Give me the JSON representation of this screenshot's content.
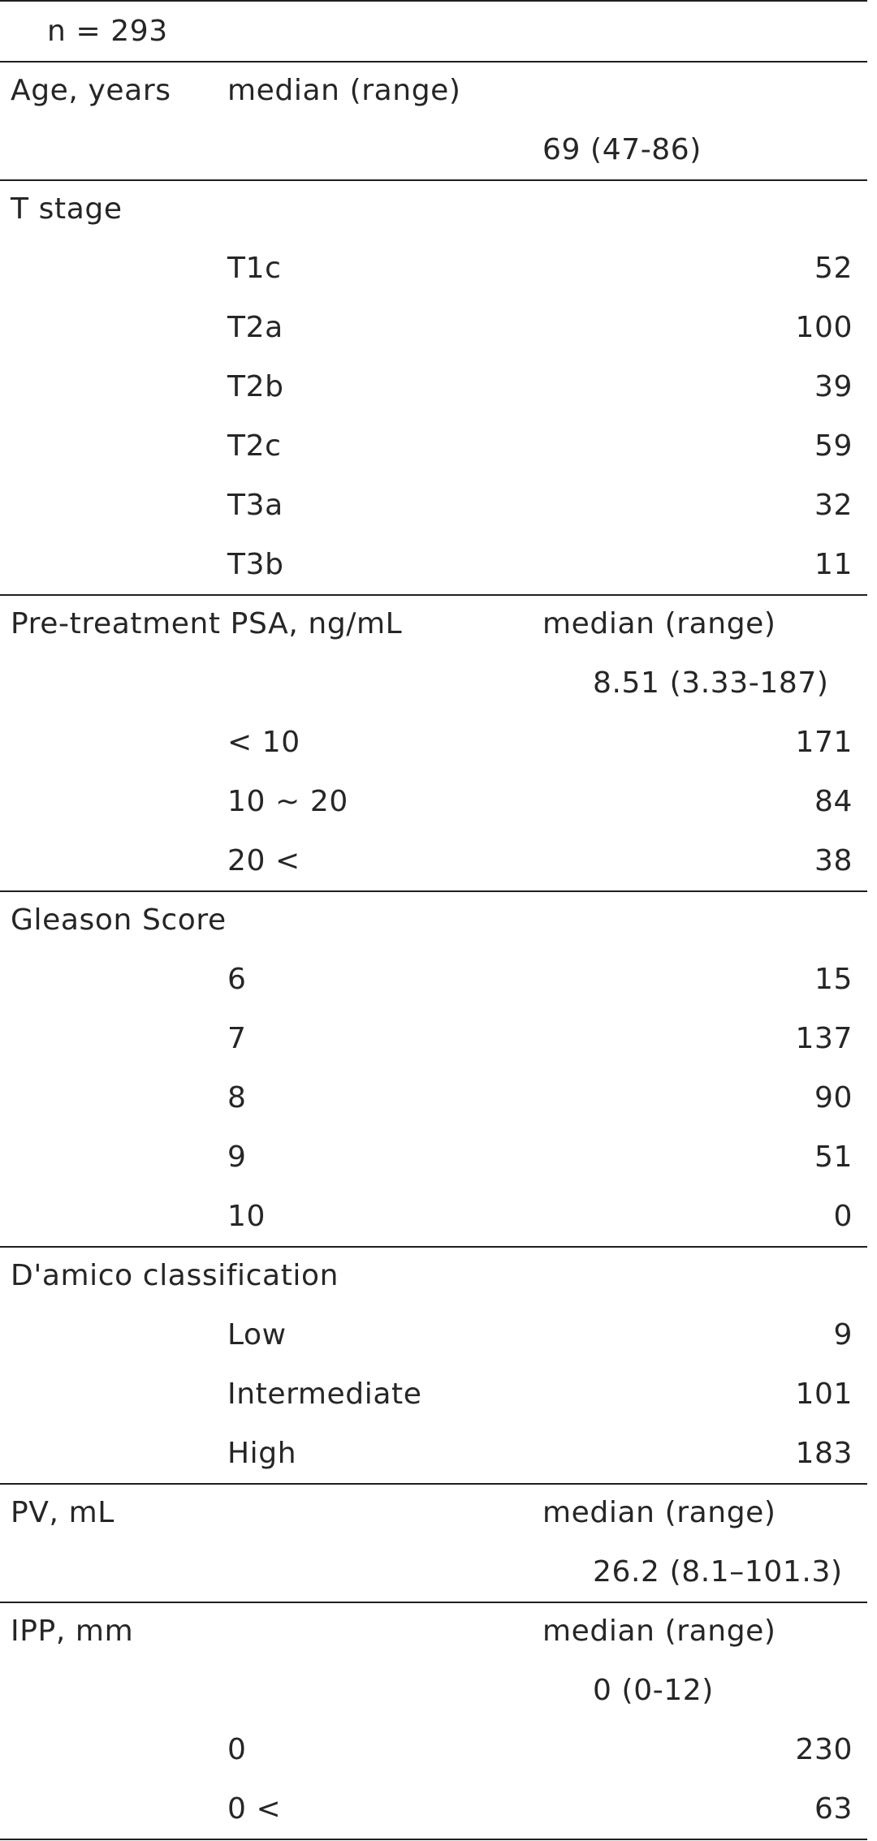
{
  "table": {
    "header": "n = 293",
    "age": {
      "label": "Age, years",
      "stat": "median (range)",
      "value": "69 (47-86)"
    },
    "t_stage": {
      "label": "T stage",
      "rows": [
        {
          "category": "T1c",
          "count": "52"
        },
        {
          "category": "T2a",
          "count": "100"
        },
        {
          "category": "T2b",
          "count": "39"
        },
        {
          "category": "T2c",
          "count": "59"
        },
        {
          "category": "T3a",
          "count": "32"
        },
        {
          "category": "T3b",
          "count": "11"
        }
      ]
    },
    "psa": {
      "label": "Pre-treatment PSA, ng/mL",
      "stat": "median (range)",
      "value": "8.51 (3.33-187)",
      "rows": [
        {
          "category": "< 10",
          "count": "171"
        },
        {
          "category": "10 ~ 20",
          "count": "84"
        },
        {
          "category": "20 <",
          "count": "38"
        }
      ]
    },
    "gleason": {
      "label": "Gleason Score",
      "rows": [
        {
          "category": "6",
          "count": "15"
        },
        {
          "category": "7",
          "count": "137"
        },
        {
          "category": "8",
          "count": "90"
        },
        {
          "category": "9",
          "count": "51"
        },
        {
          "category": "10",
          "count": "0"
        }
      ]
    },
    "damico": {
      "label": "D'amico classification",
      "rows": [
        {
          "category": "Low",
          "count": "9"
        },
        {
          "category": "Intermediate",
          "count": "101"
        },
        {
          "category": "High",
          "count": "183"
        }
      ]
    },
    "pv": {
      "label": "PV, mL",
      "stat": "median (range)",
      "value": "26.2 (8.1–101.3)"
    },
    "ipp": {
      "label": "IPP, mm",
      "stat": "median (range)",
      "value": "0 (0-12)",
      "rows": [
        {
          "category": "0",
          "count": "230"
        },
        {
          "category": "0 <",
          "count": "63"
        }
      ]
    }
  }
}
